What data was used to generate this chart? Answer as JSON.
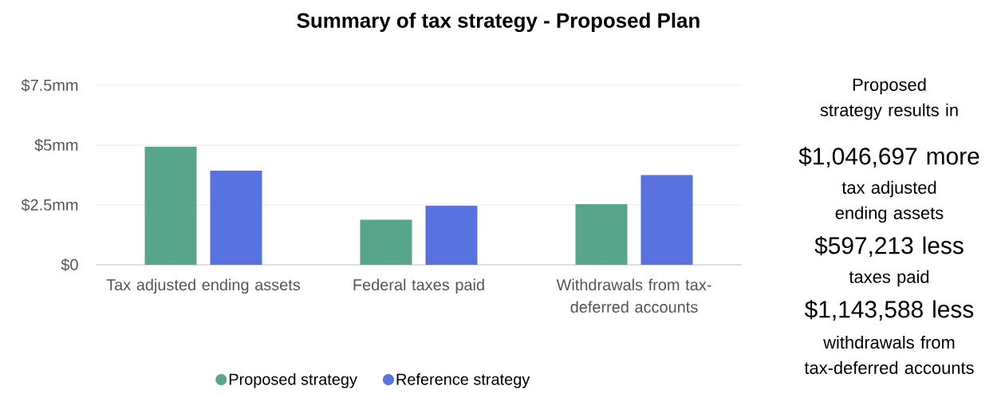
{
  "chart_data": {
    "type": "bar",
    "title": "Summary of tax strategy - Proposed Plan",
    "categories": [
      "Tax adjusted ending assets",
      "Federal taxes paid",
      "Withdrawals from tax-deferred accounts"
    ],
    "series": [
      {
        "name": "Proposed strategy",
        "color": "#57a58b",
        "values": [
          4.93,
          1.88,
          2.53
        ]
      },
      {
        "name": "Reference strategy",
        "color": "#5872e0",
        "values": [
          3.93,
          2.47,
          3.75
        ]
      }
    ],
    "ylim": [
      0,
      7.5
    ],
    "yticks": [
      {
        "value": 0,
        "label": "$0"
      },
      {
        "value": 2.5,
        "label": "$2.5mm"
      },
      {
        "value": 5,
        "label": "$5mm"
      },
      {
        "value": 7.5,
        "label": "$7.5mm"
      }
    ],
    "grid": "y",
    "legend": "bottom",
    "annotations": [
      "Proposed strategy results in",
      "$1,046,697 more",
      "tax adjusted ending assets",
      "$597,213 less",
      "taxes paid",
      "$1,143,588 less",
      "withdrawals from tax-deferred accounts"
    ]
  }
}
